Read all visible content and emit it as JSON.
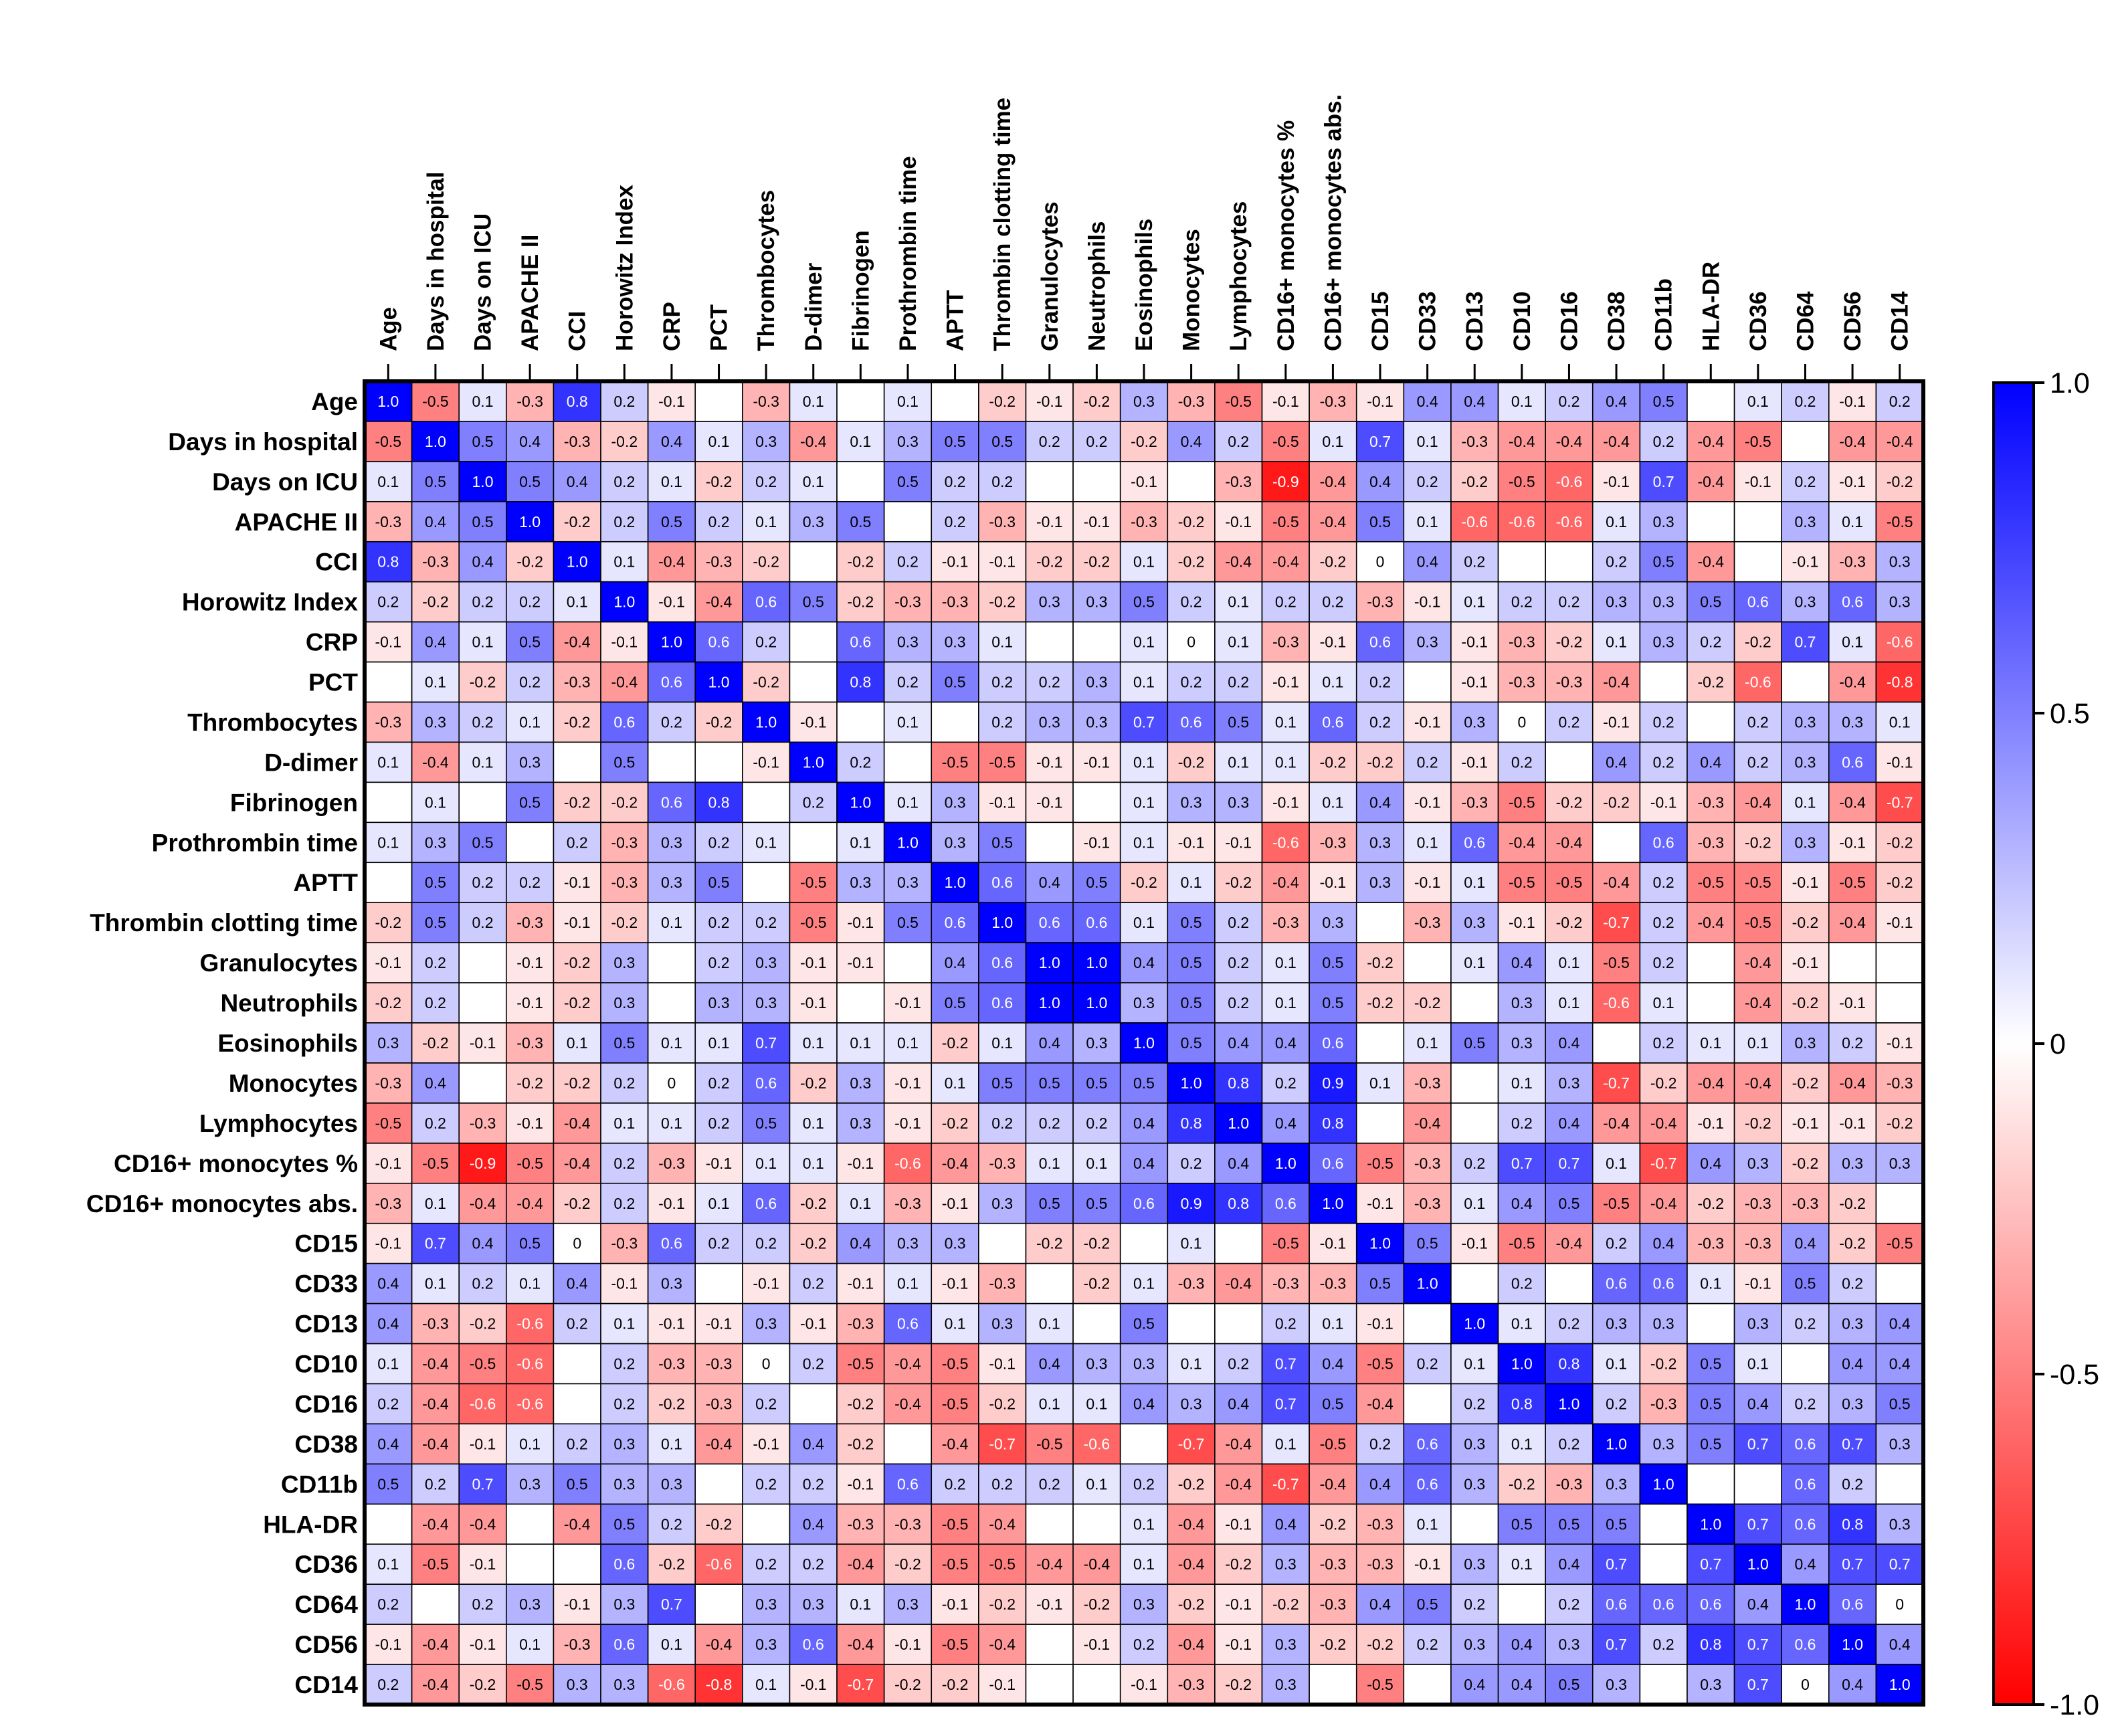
{
  "chart_data": {
    "type": "heatmap",
    "title": "",
    "xlabel": "",
    "ylabel": "",
    "labels": [
      "Age",
      "Days in hospital",
      "Days on ICU",
      "APACHE II",
      "CCI",
      "Horowitz Index",
      "CRP",
      "PCT",
      "Thrombocytes",
      "D-dimer",
      "Fibrinogen",
      "Prothrombin time",
      "APTT",
      "Thrombin clotting time",
      "Granulocytes",
      "Neutrophils",
      "Eosinophils",
      "Monocytes",
      "Lymphocytes",
      "CD16+ monocytes %",
      "CD16+ monocytes abs.",
      "CD15",
      "CD33",
      "CD13",
      "CD10",
      "CD16",
      "CD38",
      "CD11b",
      "HLA-DR",
      "CD36",
      "CD64",
      "CD56",
      "CD14"
    ],
    "values": [
      [
        1.0,
        -0.5,
        0.1,
        -0.3,
        0.8,
        0.2,
        -0.1,
        null,
        -0.3,
        0.1,
        null,
        0.1,
        null,
        -0.2,
        -0.1,
        -0.2,
        0.3,
        -0.3,
        -0.5,
        -0.1,
        -0.3,
        -0.1,
        0.4,
        0.4,
        0.1,
        0.2,
        0.4,
        0.5,
        null,
        0.1,
        0.2,
        -0.1,
        0.2
      ],
      [
        -0.5,
        1.0,
        0.5,
        0.4,
        -0.3,
        -0.2,
        0.4,
        0.1,
        0.3,
        -0.4,
        0.1,
        0.3,
        0.5,
        0.5,
        0.2,
        0.2,
        -0.2,
        0.4,
        0.2,
        -0.5,
        0.1,
        0.7,
        0.1,
        -0.3,
        -0.4,
        -0.4,
        -0.4,
        0.2,
        -0.4,
        -0.5,
        null,
        -0.4,
        -0.4
      ],
      [
        0.1,
        0.5,
        1.0,
        0.5,
        0.4,
        0.2,
        0.1,
        -0.2,
        0.2,
        0.1,
        null,
        0.5,
        0.2,
        0.2,
        null,
        null,
        -0.1,
        null,
        -0.3,
        -0.9,
        -0.4,
        0.4,
        0.2,
        -0.2,
        -0.5,
        -0.6,
        -0.1,
        0.7,
        -0.4,
        -0.1,
        0.2,
        -0.1,
        -0.2
      ],
      [
        -0.3,
        0.4,
        0.5,
        1.0,
        -0.2,
        0.2,
        0.5,
        0.2,
        0.1,
        0.3,
        0.5,
        null,
        0.2,
        -0.3,
        -0.1,
        -0.1,
        -0.3,
        -0.2,
        -0.1,
        -0.5,
        -0.4,
        0.5,
        0.1,
        -0.6,
        -0.6,
        -0.6,
        0.1,
        0.3,
        null,
        null,
        0.3,
        0.1,
        -0.5
      ],
      [
        0.8,
        -0.3,
        0.4,
        -0.2,
        1.0,
        0.1,
        -0.4,
        -0.3,
        -0.2,
        null,
        -0.2,
        0.2,
        -0.1,
        -0.1,
        -0.2,
        -0.2,
        0.1,
        -0.2,
        -0.4,
        -0.4,
        -0.2,
        0,
        0.4,
        0.2,
        null,
        null,
        0.2,
        0.5,
        -0.4,
        null,
        -0.1,
        -0.3,
        0.3
      ],
      [
        0.2,
        -0.2,
        0.2,
        0.2,
        0.1,
        1.0,
        -0.1,
        -0.4,
        0.6,
        0.5,
        -0.2,
        -0.3,
        -0.3,
        -0.2,
        0.3,
        0.3,
        0.5,
        0.2,
        0.1,
        0.2,
        0.2,
        -0.3,
        -0.1,
        0.1,
        0.2,
        0.2,
        0.3,
        0.3,
        0.5,
        0.6,
        0.3,
        0.6,
        0.3
      ],
      [
        -0.1,
        0.4,
        0.1,
        0.5,
        -0.4,
        -0.1,
        1.0,
        0.6,
        0.2,
        null,
        0.6,
        0.3,
        0.3,
        0.1,
        null,
        null,
        0.1,
        0,
        0.1,
        -0.3,
        -0.1,
        0.6,
        0.3,
        -0.1,
        -0.3,
        -0.2,
        0.1,
        0.3,
        0.2,
        -0.2,
        0.7,
        0.1,
        -0.6
      ],
      [
        null,
        0.1,
        -0.2,
        0.2,
        -0.3,
        -0.4,
        0.6,
        1.0,
        -0.2,
        null,
        0.8,
        0.2,
        0.5,
        0.2,
        0.2,
        0.3,
        0.1,
        0.2,
        0.2,
        -0.1,
        0.1,
        0.2,
        null,
        -0.1,
        -0.3,
        -0.3,
        -0.4,
        null,
        -0.2,
        -0.6,
        null,
        -0.4,
        -0.8
      ],
      [
        -0.3,
        0.3,
        0.2,
        0.1,
        -0.2,
        0.6,
        0.2,
        -0.2,
        1.0,
        -0.1,
        null,
        0.1,
        null,
        0.2,
        0.3,
        0.3,
        0.7,
        0.6,
        0.5,
        0.1,
        0.6,
        0.2,
        -0.1,
        0.3,
        0,
        0.2,
        -0.1,
        0.2,
        null,
        0.2,
        0.3,
        0.3,
        0.1
      ],
      [
        0.1,
        -0.4,
        0.1,
        0.3,
        null,
        0.5,
        null,
        null,
        -0.1,
        1.0,
        0.2,
        null,
        -0.5,
        -0.5,
        -0.1,
        -0.1,
        0.1,
        -0.2,
        0.1,
        0.1,
        -0.2,
        -0.2,
        0.2,
        -0.1,
        0.2,
        null,
        0.4,
        0.2,
        0.4,
        0.2,
        0.3,
        0.6,
        -0.1
      ],
      [
        null,
        0.1,
        null,
        0.5,
        -0.2,
        -0.2,
        0.6,
        0.8,
        null,
        0.2,
        1.0,
        0.1,
        0.3,
        -0.1,
        -0.1,
        null,
        0.1,
        0.3,
        0.3,
        -0.1,
        0.1,
        0.4,
        -0.1,
        -0.3,
        -0.5,
        -0.2,
        -0.2,
        -0.1,
        -0.3,
        -0.4,
        0.1,
        -0.4,
        -0.7
      ],
      [
        0.1,
        0.3,
        0.5,
        null,
        0.2,
        -0.3,
        0.3,
        0.2,
        0.1,
        null,
        0.1,
        1.0,
        0.3,
        0.5,
        null,
        -0.1,
        0.1,
        -0.1,
        -0.1,
        -0.6,
        -0.3,
        0.3,
        0.1,
        0.6,
        -0.4,
        -0.4,
        null,
        0.6,
        -0.3,
        -0.2,
        0.3,
        -0.1,
        -0.2
      ],
      [
        null,
        0.5,
        0.2,
        0.2,
        -0.1,
        -0.3,
        0.3,
        0.5,
        null,
        -0.5,
        0.3,
        0.3,
        1.0,
        0.6,
        0.4,
        0.5,
        -0.2,
        0.1,
        -0.2,
        -0.4,
        -0.1,
        0.3,
        -0.1,
        0.1,
        -0.5,
        -0.5,
        -0.4,
        0.2,
        -0.5,
        -0.5,
        -0.1,
        -0.5,
        -0.2
      ],
      [
        -0.2,
        0.5,
        0.2,
        -0.3,
        -0.1,
        -0.2,
        0.1,
        0.2,
        0.2,
        -0.5,
        -0.1,
        0.5,
        0.6,
        1.0,
        0.6,
        0.6,
        0.1,
        0.5,
        0.2,
        -0.3,
        0.3,
        null,
        -0.3,
        0.3,
        -0.1,
        -0.2,
        -0.7,
        0.2,
        -0.4,
        -0.5,
        -0.2,
        -0.4,
        -0.1
      ],
      [
        -0.1,
        0.2,
        null,
        -0.1,
        -0.2,
        0.3,
        null,
        0.2,
        0.3,
        -0.1,
        -0.1,
        null,
        0.4,
        0.6,
        1.0,
        1.0,
        0.4,
        0.5,
        0.2,
        0.1,
        0.5,
        -0.2,
        null,
        0.1,
        0.4,
        0.1,
        -0.5,
        0.2,
        null,
        -0.4,
        -0.1,
        null,
        null
      ],
      [
        -0.2,
        0.2,
        null,
        -0.1,
        -0.2,
        0.3,
        null,
        0.3,
        0.3,
        -0.1,
        null,
        -0.1,
        0.5,
        0.6,
        1.0,
        1.0,
        0.3,
        0.5,
        0.2,
        0.1,
        0.5,
        -0.2,
        -0.2,
        null,
        0.3,
        0.1,
        -0.6,
        0.1,
        null,
        -0.4,
        -0.2,
        -0.1,
        null
      ],
      [
        0.3,
        -0.2,
        -0.1,
        -0.3,
        0.1,
        0.5,
        0.1,
        0.1,
        0.7,
        0.1,
        0.1,
        0.1,
        -0.2,
        0.1,
        0.4,
        0.3,
        1.0,
        0.5,
        0.4,
        0.4,
        0.6,
        null,
        0.1,
        0.5,
        0.3,
        0.4,
        null,
        0.2,
        0.1,
        0.1,
        0.3,
        0.2,
        -0.1
      ],
      [
        -0.3,
        0.4,
        null,
        -0.2,
        -0.2,
        0.2,
        0,
        0.2,
        0.6,
        -0.2,
        0.3,
        -0.1,
        0.1,
        0.5,
        0.5,
        0.5,
        0.5,
        1.0,
        0.8,
        0.2,
        0.9,
        0.1,
        -0.3,
        null,
        0.1,
        0.3,
        -0.7,
        -0.2,
        -0.4,
        -0.4,
        -0.2,
        -0.4,
        -0.3
      ],
      [
        -0.5,
        0.2,
        -0.3,
        -0.1,
        -0.4,
        0.1,
        0.1,
        0.2,
        0.5,
        0.1,
        0.3,
        -0.1,
        -0.2,
        0.2,
        0.2,
        0.2,
        0.4,
        0.8,
        1.0,
        0.4,
        0.8,
        null,
        -0.4,
        null,
        0.2,
        0.4,
        -0.4,
        -0.4,
        -0.1,
        -0.2,
        -0.1,
        -0.1,
        -0.2
      ],
      [
        -0.1,
        -0.5,
        -0.9,
        -0.5,
        -0.4,
        0.2,
        -0.3,
        -0.1,
        0.1,
        0.1,
        -0.1,
        -0.6,
        -0.4,
        -0.3,
        0.1,
        0.1,
        0.4,
        0.2,
        0.4,
        1.0,
        0.6,
        -0.5,
        -0.3,
        0.2,
        0.7,
        0.7,
        0.1,
        -0.7,
        0.4,
        0.3,
        -0.2,
        0.3,
        0.3
      ],
      [
        -0.3,
        0.1,
        -0.4,
        -0.4,
        -0.2,
        0.2,
        -0.1,
        0.1,
        0.6,
        -0.2,
        0.1,
        -0.3,
        -0.1,
        0.3,
        0.5,
        0.5,
        0.6,
        0.9,
        0.8,
        0.6,
        1.0,
        -0.1,
        -0.3,
        0.1,
        0.4,
        0.5,
        -0.5,
        -0.4,
        -0.2,
        -0.3,
        -0.3,
        -0.2,
        null
      ],
      [
        -0.1,
        0.7,
        0.4,
        0.5,
        0,
        -0.3,
        0.6,
        0.2,
        0.2,
        -0.2,
        0.4,
        0.3,
        0.3,
        null,
        -0.2,
        -0.2,
        null,
        0.1,
        null,
        -0.5,
        -0.1,
        1.0,
        0.5,
        -0.1,
        -0.5,
        -0.4,
        0.2,
        0.4,
        -0.3,
        -0.3,
        0.4,
        -0.2,
        -0.5
      ],
      [
        0.4,
        0.1,
        0.2,
        0.1,
        0.4,
        -0.1,
        0.3,
        null,
        -0.1,
        0.2,
        -0.1,
        0.1,
        -0.1,
        -0.3,
        null,
        -0.2,
        0.1,
        -0.3,
        -0.4,
        -0.3,
        -0.3,
        0.5,
        1.0,
        null,
        0.2,
        null,
        0.6,
        0.6,
        0.1,
        -0.1,
        0.5,
        0.2,
        null
      ],
      [
        0.4,
        -0.3,
        -0.2,
        -0.6,
        0.2,
        0.1,
        -0.1,
        -0.1,
        0.3,
        -0.1,
        -0.3,
        0.6,
        0.1,
        0.3,
        0.1,
        null,
        0.5,
        null,
        null,
        0.2,
        0.1,
        -0.1,
        null,
        1.0,
        0.1,
        0.2,
        0.3,
        0.3,
        null,
        0.3,
        0.2,
        0.3,
        0.4
      ],
      [
        0.1,
        -0.4,
        -0.5,
        -0.6,
        null,
        0.2,
        -0.3,
        -0.3,
        0,
        0.2,
        -0.5,
        -0.4,
        -0.5,
        -0.1,
        0.4,
        0.3,
        0.3,
        0.1,
        0.2,
        0.7,
        0.4,
        -0.5,
        0.2,
        0.1,
        1.0,
        0.8,
        0.1,
        -0.2,
        0.5,
        0.1,
        null,
        0.4,
        0.4
      ],
      [
        0.2,
        -0.4,
        -0.6,
        -0.6,
        null,
        0.2,
        -0.2,
        -0.3,
        0.2,
        null,
        -0.2,
        -0.4,
        -0.5,
        -0.2,
        0.1,
        0.1,
        0.4,
        0.3,
        0.4,
        0.7,
        0.5,
        -0.4,
        null,
        0.2,
        0.8,
        1.0,
        0.2,
        -0.3,
        0.5,
        0.4,
        0.2,
        0.3,
        0.5
      ],
      [
        0.4,
        -0.4,
        -0.1,
        0.1,
        0.2,
        0.3,
        0.1,
        -0.4,
        -0.1,
        0.4,
        -0.2,
        null,
        -0.4,
        -0.7,
        -0.5,
        -0.6,
        null,
        -0.7,
        -0.4,
        0.1,
        -0.5,
        0.2,
        0.6,
        0.3,
        0.1,
        0.2,
        1.0,
        0.3,
        0.5,
        0.7,
        0.6,
        0.7,
        0.3
      ],
      [
        0.5,
        0.2,
        0.7,
        0.3,
        0.5,
        0.3,
        0.3,
        null,
        0.2,
        0.2,
        -0.1,
        0.6,
        0.2,
        0.2,
        0.2,
        0.1,
        0.2,
        -0.2,
        -0.4,
        -0.7,
        -0.4,
        0.4,
        0.6,
        0.3,
        -0.2,
        -0.3,
        0.3,
        1.0,
        null,
        null,
        0.6,
        0.2,
        null
      ],
      [
        null,
        -0.4,
        -0.4,
        null,
        -0.4,
        0.5,
        0.2,
        -0.2,
        null,
        0.4,
        -0.3,
        -0.3,
        -0.5,
        -0.4,
        null,
        null,
        0.1,
        -0.4,
        -0.1,
        0.4,
        -0.2,
        -0.3,
        0.1,
        null,
        0.5,
        0.5,
        0.5,
        null,
        1.0,
        0.7,
        0.6,
        0.8,
        0.3
      ],
      [
        0.1,
        -0.5,
        -0.1,
        null,
        null,
        0.6,
        -0.2,
        -0.6,
        0.2,
        0.2,
        -0.4,
        -0.2,
        -0.5,
        -0.5,
        -0.4,
        -0.4,
        0.1,
        -0.4,
        -0.2,
        0.3,
        -0.3,
        -0.3,
        -0.1,
        0.3,
        0.1,
        0.4,
        0.7,
        null,
        0.7,
        1.0,
        0.4,
        0.7,
        0.7
      ],
      [
        0.2,
        null,
        0.2,
        0.3,
        -0.1,
        0.3,
        0.7,
        null,
        0.3,
        0.3,
        0.1,
        0.3,
        -0.1,
        -0.2,
        -0.1,
        -0.2,
        0.3,
        -0.2,
        -0.1,
        -0.2,
        -0.3,
        0.4,
        0.5,
        0.2,
        null,
        0.2,
        0.6,
        0.6,
        0.6,
        0.4,
        1.0,
        0.6,
        0
      ],
      [
        -0.1,
        -0.4,
        -0.1,
        0.1,
        -0.3,
        0.6,
        0.1,
        -0.4,
        0.3,
        0.6,
        -0.4,
        -0.1,
        -0.5,
        -0.4,
        null,
        -0.1,
        0.2,
        -0.4,
        -0.1,
        0.3,
        -0.2,
        -0.2,
        0.2,
        0.3,
        0.4,
        0.3,
        0.7,
        0.2,
        0.8,
        0.7,
        0.6,
        1.0,
        0.4
      ],
      [
        0.2,
        -0.4,
        -0.2,
        -0.5,
        0.3,
        0.3,
        -0.6,
        -0.8,
        0.1,
        -0.1,
        -0.7,
        -0.2,
        -0.2,
        -0.1,
        null,
        null,
        -0.1,
        -0.3,
        -0.2,
        0.3,
        null,
        -0.5,
        null,
        0.4,
        0.4,
        0.5,
        0.3,
        null,
        0.3,
        0.7,
        0,
        0.4,
        1.0
      ]
    ],
    "color_scale": {
      "min": -1.0,
      "max": 1.0,
      "ticks": [
        "1.0",
        "0.5",
        "0",
        "-0.5",
        "-1.0"
      ],
      "colors": {
        "low": "#ff0000",
        "mid": "#ffffff",
        "high": "#0000ff"
      }
    }
  }
}
